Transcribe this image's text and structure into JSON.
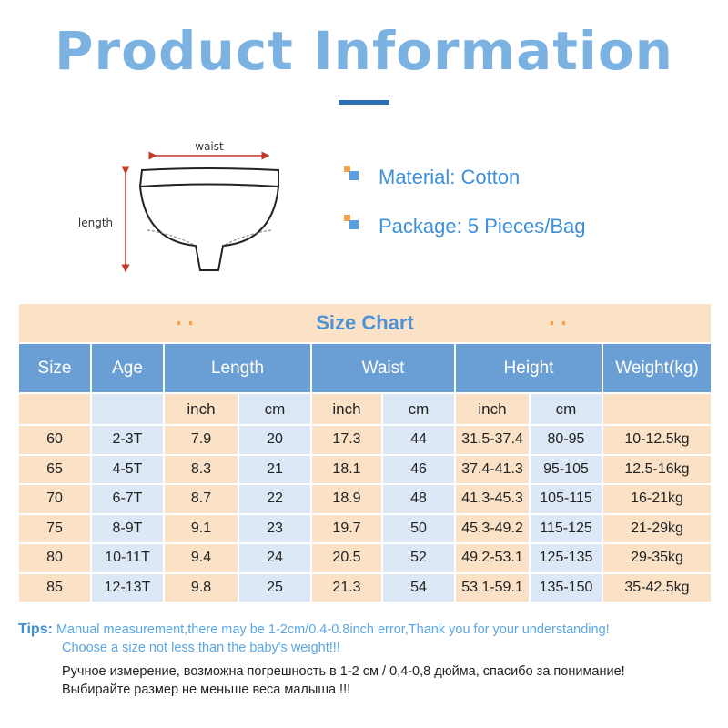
{
  "header": {
    "title": "Product Information"
  },
  "diagram": {
    "waist_label": "waist",
    "length_label": "length"
  },
  "features": [
    "Material: Cotton",
    "Package: 5 Pieces/Bag"
  ],
  "table": {
    "title": "Size Chart",
    "headers": [
      "Size",
      "Age",
      "Length",
      "Waist",
      "Height",
      "Weight(kg)"
    ],
    "subheaders": [
      "inch",
      "cm",
      "inch",
      "cm",
      "inch",
      "cm"
    ],
    "rows": [
      [
        "60",
        "2-3T",
        "7.9",
        "20",
        "17.3",
        "44",
        "31.5-37.4",
        "80-95",
        "10-12.5kg"
      ],
      [
        "65",
        "4-5T",
        "8.3",
        "21",
        "18.1",
        "46",
        "37.4-41.3",
        "95-105",
        "12.5-16kg"
      ],
      [
        "70",
        "6-7T",
        "8.7",
        "22",
        "18.9",
        "48",
        "41.3-45.3",
        "105-115",
        "16-21kg"
      ],
      [
        "75",
        "8-9T",
        "9.1",
        "23",
        "19.7",
        "50",
        "45.3-49.2",
        "115-125",
        "21-29kg"
      ],
      [
        "80",
        "10-11T",
        "9.4",
        "24",
        "20.5",
        "52",
        "49.2-53.1",
        "125-135",
        "29-35kg"
      ],
      [
        "85",
        "12-13T",
        "9.8",
        "25",
        "21.3",
        "54",
        "53.1-59.1",
        "135-150",
        "35-42.5kg"
      ]
    ]
  },
  "tips": {
    "label": "Tips:",
    "english": [
      "Manual measurement,there may be 1-2cm/0.4-0.8inch error,Thank you for your understanding!",
      "Choose a size not less than the baby's weight!!!"
    ],
    "russian": [
      "Ручное измерение, возможна погрешность в 1-2 см / 0,4-0,8 дюйма, спасибо за понимание!",
      "Выбирайте размер не меньше веса малыша !!!"
    ]
  }
}
